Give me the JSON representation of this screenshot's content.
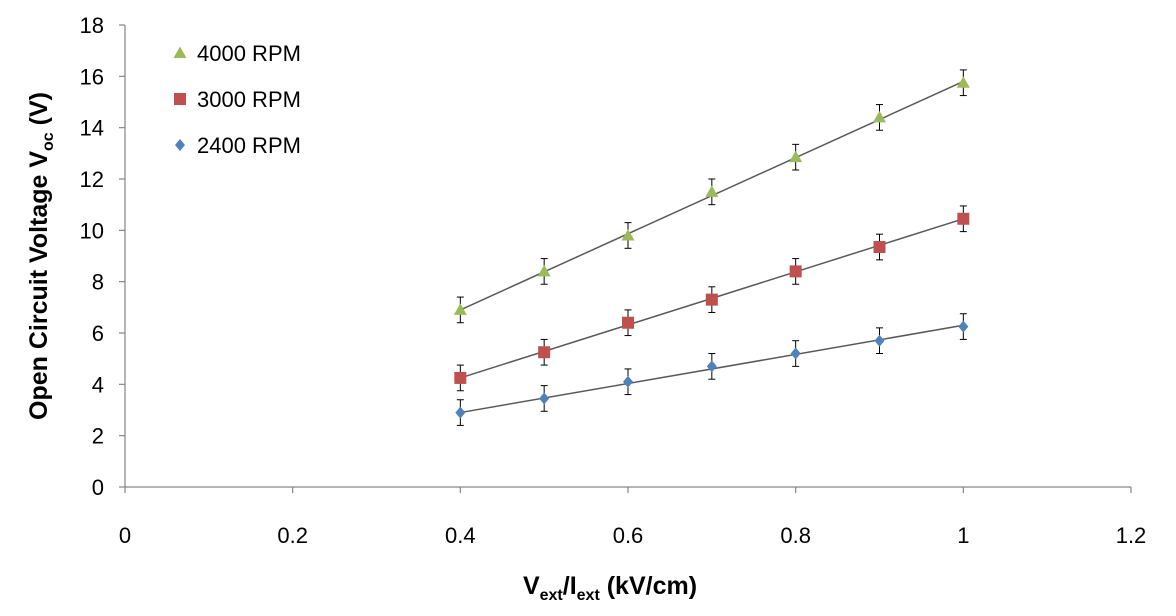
{
  "chart_data": {
    "type": "scatter",
    "title": "",
    "xlabel": {
      "main": "V",
      "sub1": "ext",
      "mid": "/I",
      "sub2": "ext",
      "tail": " (kV/cm)"
    },
    "ylabel": {
      "main": "Open Circuit Voltage V",
      "sub": "oc",
      "tail": " (V)"
    },
    "xlim": [
      0,
      1.2
    ],
    "ylim": [
      0,
      18
    ],
    "xticks": [
      "0",
      "0.2",
      "0.4",
      "0.6",
      "0.8",
      "1",
      "1.2"
    ],
    "yticks": [
      "0",
      "2",
      "4",
      "6",
      "8",
      "10",
      "12",
      "14",
      "16",
      "18"
    ],
    "grid": false,
    "legend_position": "top-left",
    "x": [
      0.4,
      0.5,
      0.6,
      0.7,
      0.8,
      0.9,
      1.0
    ],
    "series": [
      {
        "name": "4000 RPM",
        "marker": "triangle",
        "color": "#9BBB59",
        "values": [
          6.9,
          8.4,
          9.8,
          11.5,
          12.85,
          14.4,
          15.75
        ],
        "error": [
          0.5,
          0.5,
          0.5,
          0.5,
          0.5,
          0.5,
          0.5
        ],
        "fit": [
          6.9,
          15.8
        ]
      },
      {
        "name": "3000 RPM",
        "marker": "square",
        "color": "#C0504D",
        "values": [
          4.25,
          5.25,
          6.4,
          7.3,
          8.4,
          9.35,
          10.45
        ],
        "error": [
          0.5,
          0.5,
          0.5,
          0.5,
          0.5,
          0.5,
          0.5
        ],
        "fit": [
          4.25,
          10.45
        ]
      },
      {
        "name": "2400 RPM",
        "marker": "diamond",
        "color": "#4F81BD",
        "values": [
          2.9,
          3.45,
          4.1,
          4.7,
          5.2,
          5.7,
          6.25
        ],
        "error": [
          0.5,
          0.5,
          0.5,
          0.5,
          0.5,
          0.5,
          0.5
        ],
        "fit": [
          2.9,
          6.3
        ]
      }
    ],
    "axis_color": "#868686",
    "fit_color": "#595959"
  }
}
